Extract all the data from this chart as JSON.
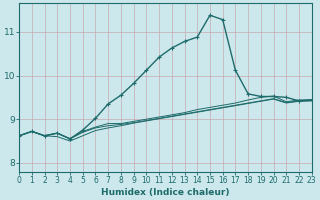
{
  "title": "",
  "xlabel": "Humidex (Indice chaleur)",
  "xlim": [
    0,
    23
  ],
  "ylim": [
    7.8,
    11.65
  ],
  "yticks": [
    8,
    9,
    10,
    11
  ],
  "xticks": [
    0,
    1,
    2,
    3,
    4,
    5,
    6,
    7,
    8,
    9,
    10,
    11,
    12,
    13,
    14,
    15,
    16,
    17,
    18,
    19,
    20,
    21,
    22,
    23
  ],
  "bg_color": "#cce8ec",
  "line_color": "#1e6b6b",
  "grid_color": "#b0d4d8",
  "series_smooth": [
    [
      8.62,
      8.72,
      8.62,
      8.68,
      8.55,
      8.7,
      8.8,
      8.85,
      8.88,
      8.92,
      8.97,
      9.02,
      9.07,
      9.12,
      9.17,
      9.22,
      9.27,
      9.32,
      9.37,
      9.42,
      9.47,
      9.38,
      9.42,
      9.43
    ],
    [
      8.62,
      8.72,
      8.62,
      8.6,
      8.5,
      8.62,
      8.74,
      8.8,
      8.85,
      8.91,
      8.96,
      9.01,
      9.06,
      9.11,
      9.16,
      9.21,
      9.26,
      9.31,
      9.36,
      9.41,
      9.46,
      9.37,
      9.41,
      9.42
    ],
    [
      8.62,
      8.72,
      8.62,
      8.68,
      8.55,
      8.72,
      8.82,
      8.9,
      8.9,
      8.95,
      9.0,
      9.05,
      9.1,
      9.15,
      9.22,
      9.27,
      9.32,
      9.37,
      9.44,
      9.5,
      9.53,
      9.4,
      9.44,
      9.45
    ]
  ],
  "series_main": [
    8.62,
    8.72,
    8.62,
    8.68,
    8.55,
    8.75,
    9.02,
    9.35,
    9.55,
    9.82,
    10.12,
    10.42,
    10.63,
    10.78,
    10.88,
    11.38,
    11.28,
    10.12,
    9.58,
    9.52,
    9.52,
    9.5,
    9.42,
    9.43
  ]
}
